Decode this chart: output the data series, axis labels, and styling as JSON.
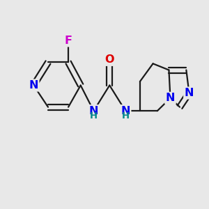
{
  "bg": "#e8e8e8",
  "bond_color": "#1a1a1a",
  "bond_lw": 1.6,
  "atom_colors": {
    "N": "#0000ee",
    "O": "#dd0000",
    "F": "#cc00cc",
    "H": "#008888"
  },
  "fs": 11.5,
  "fs_sub": 9.5,
  "figsize": [
    3.0,
    3.0
  ],
  "dpi": 100
}
